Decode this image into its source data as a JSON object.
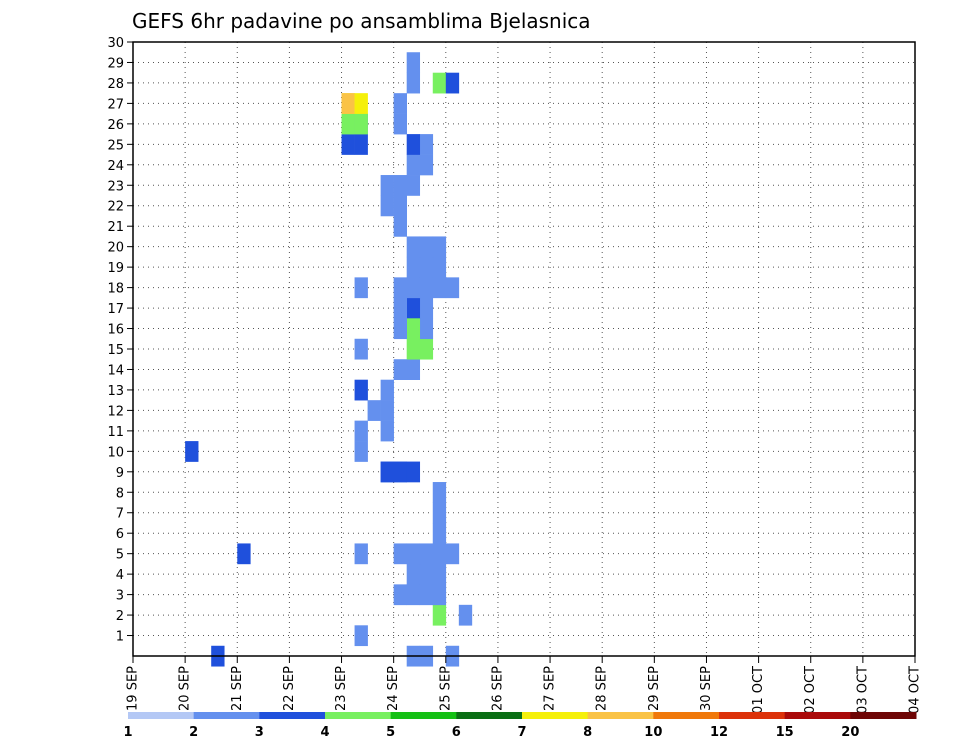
{
  "chart_data": {
    "type": "heatmap",
    "title": "GEFS 6hr padavine po ansamblima Bjelasnica",
    "y_ticks": [
      1,
      2,
      3,
      4,
      5,
      6,
      7,
      8,
      9,
      10,
      11,
      12,
      13,
      14,
      15,
      16,
      17,
      18,
      19,
      20,
      21,
      22,
      23,
      24,
      25,
      26,
      27,
      28,
      29,
      30
    ],
    "ylim": [
      0,
      30
    ],
    "x_tick_labels": [
      "19 SEP",
      "20 SEP",
      "21 SEP",
      "22 SEP",
      "23 SEP",
      "24 SEP",
      "25 SEP",
      "26 SEP",
      "27 SEP",
      "28 SEP",
      "29 SEP",
      "30 SEP",
      "01 OCT",
      "02 OCT",
      "03 OCT",
      "04 OCT"
    ],
    "x_unit": "6-hour step (4 per day)",
    "xlim": [
      0,
      60
    ],
    "grid": true,
    "color_scale": {
      "thresholds": [
        "1",
        "2",
        "3",
        "4",
        "5",
        "6",
        "7",
        "8",
        "10",
        "12",
        "15",
        "20"
      ],
      "colors": [
        "#b4c8f5",
        "#6490ee",
        "#1f50dc",
        "#78f060",
        "#14c014",
        "#0a6e14",
        "#f5f00a",
        "#fac346",
        "#f0780a",
        "#dc320a",
        "#aa0a0a",
        "#6e0505"
      ]
    },
    "cells": [
      [
        6,
        0,
        2
      ],
      [
        17,
        1,
        1
      ],
      [
        17,
        5,
        1
      ],
      [
        17,
        10,
        1
      ],
      [
        17,
        11,
        1
      ],
      [
        17,
        13,
        2
      ],
      [
        17,
        15,
        1
      ],
      [
        17,
        18,
        1
      ],
      [
        17,
        26,
        1
      ],
      [
        16,
        25,
        2
      ],
      [
        16,
        26,
        3
      ],
      [
        16,
        27,
        6
      ],
      [
        16,
        27,
        7
      ],
      [
        17,
        25,
        2
      ],
      [
        17,
        26,
        3
      ],
      [
        17,
        27,
        6
      ],
      [
        24,
        0,
        1
      ],
      [
        23,
        2,
        3
      ],
      [
        25,
        2,
        1
      ],
      [
        20,
        3,
        1
      ],
      [
        8,
        5,
        2
      ],
      [
        24,
        5,
        1
      ],
      [
        19,
        9,
        1
      ],
      [
        4,
        10,
        2
      ],
      [
        20,
        9,
        1
      ],
      [
        21,
        0,
        1
      ],
      [
        22,
        0,
        1
      ],
      [
        21,
        3,
        1
      ],
      [
        22,
        3,
        1
      ],
      [
        23,
        3,
        1
      ],
      [
        21,
        4,
        1
      ],
      [
        22,
        4,
        1
      ],
      [
        23,
        4,
        1
      ],
      [
        22,
        5,
        1
      ],
      [
        23,
        5,
        1
      ],
      [
        23,
        6,
        1
      ],
      [
        23,
        7,
        1
      ],
      [
        23,
        8,
        1
      ],
      [
        20,
        5,
        1
      ],
      [
        21,
        5,
        1
      ],
      [
        19,
        9,
        2
      ],
      [
        20,
        9,
        2
      ],
      [
        21,
        9,
        2
      ],
      [
        19,
        11,
        1
      ],
      [
        19,
        12,
        1
      ],
      [
        18,
        12,
        1
      ],
      [
        19,
        13,
        1
      ],
      [
        20,
        14,
        1
      ],
      [
        21,
        14,
        1
      ],
      [
        21,
        15,
        3
      ],
      [
        22,
        15,
        3
      ],
      [
        22,
        16,
        1
      ],
      [
        22,
        17,
        1
      ],
      [
        21,
        17,
        2
      ],
      [
        21,
        16,
        3
      ],
      [
        20,
        16,
        1
      ],
      [
        20,
        17,
        1
      ],
      [
        20,
        18,
        1
      ],
      [
        21,
        18,
        1
      ],
      [
        22,
        18,
        1
      ],
      [
        23,
        18,
        1
      ],
      [
        24,
        18,
        1
      ],
      [
        21,
        19,
        1
      ],
      [
        22,
        19,
        1
      ],
      [
        23,
        19,
        1
      ],
      [
        23,
        20,
        1
      ],
      [
        22,
        20,
        1
      ],
      [
        21,
        20,
        1
      ],
      [
        20,
        21,
        1
      ],
      [
        20,
        22,
        1
      ],
      [
        19,
        22,
        1
      ],
      [
        19,
        23,
        1
      ],
      [
        20,
        23,
        1
      ],
      [
        21,
        23,
        1
      ],
      [
        21,
        24,
        1
      ],
      [
        22,
        24,
        1
      ],
      [
        22,
        25,
        1
      ],
      [
        21,
        25,
        2
      ],
      [
        20,
        26,
        1
      ],
      [
        20,
        27,
        1
      ],
      [
        21,
        28,
        1
      ],
      [
        23,
        28,
        3
      ],
      [
        24,
        28,
        2
      ],
      [
        21,
        29,
        1
      ]
    ]
  }
}
